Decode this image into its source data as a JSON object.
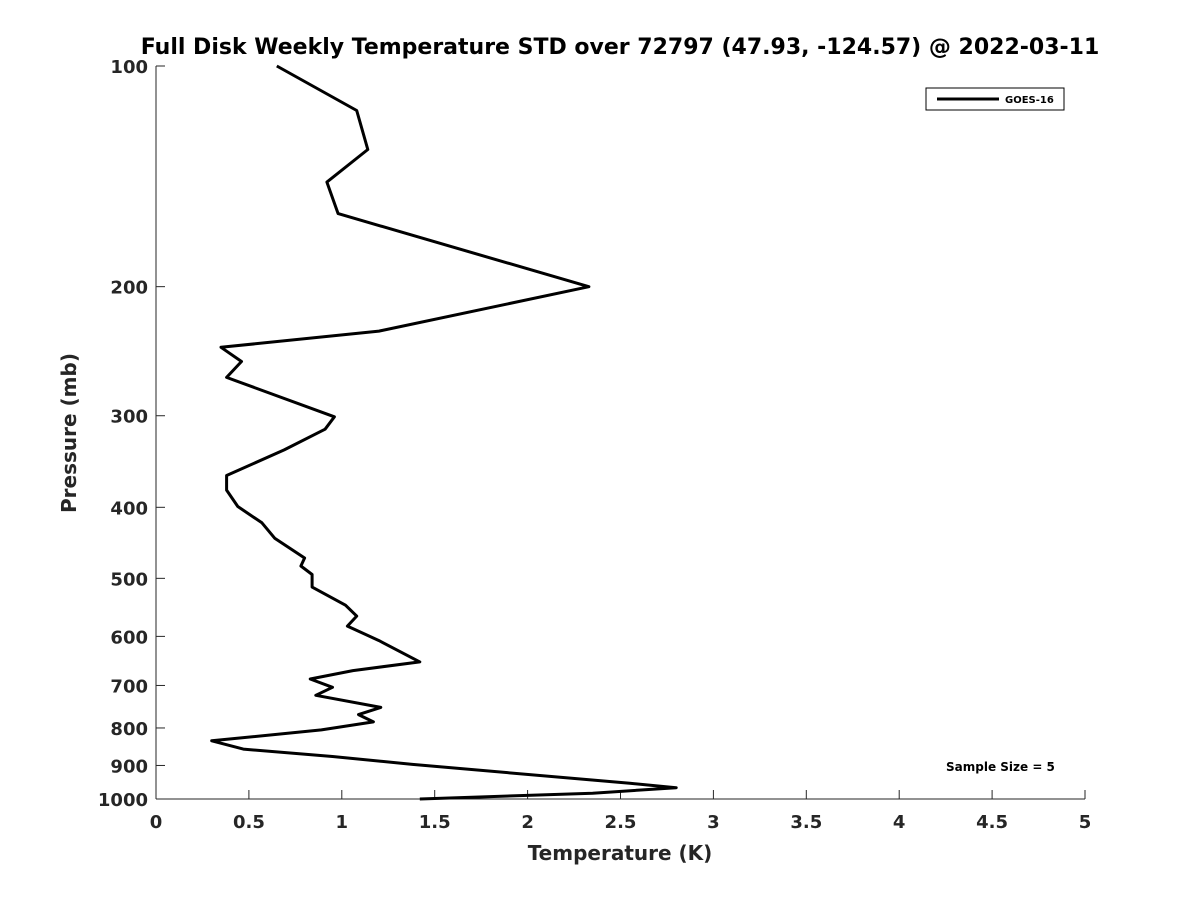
{
  "chart_data": {
    "type": "line",
    "title": "Full Disk Weekly Temperature STD over 72797 (47.93, -124.57) @ 2022-03-11",
    "xlabel": "Temperature (K)",
    "ylabel": "Pressure (mb)",
    "xlim": [
      0,
      5
    ],
    "ylim": [
      100,
      1000
    ],
    "y_scale": "log",
    "y_reversed": true,
    "xticks": [
      "0",
      "0.5",
      "1",
      "1.5",
      "2",
      "2.5",
      "3",
      "3.5",
      "4",
      "4.5",
      "5"
    ],
    "yticks": [
      "100",
      "200",
      "300",
      "400",
      "500",
      "600",
      "700",
      "800",
      "900",
      "1000"
    ],
    "grid": false,
    "legend_position": "top-right",
    "annotation": "Sample Size = 5",
    "series": [
      {
        "name": "GOES-16",
        "color": "#000000",
        "x": [
          0.65,
          1.08,
          1.14,
          0.92,
          0.98,
          2.33,
          1.2,
          0.35,
          0.46,
          0.38,
          0.96,
          0.91,
          0.69,
          0.38,
          0.38,
          0.44,
          0.57,
          0.64,
          0.8,
          0.78,
          0.84,
          0.84,
          1.02,
          1.08,
          1.03,
          1.2,
          1.42,
          1.06,
          0.83,
          0.95,
          0.86,
          1.21,
          1.09,
          1.17,
          0.89,
          0.3,
          0.47,
          0.95,
          1.38,
          2.55,
          2.8,
          2.35,
          1.42
        ],
        "y": [
          100,
          115,
          130,
          144,
          159,
          200,
          230,
          242,
          253,
          266,
          301,
          313,
          334,
          362,
          379,
          399,
          420,
          441,
          469,
          481,
          494,
          514,
          544,
          563,
          581,
          608,
          650,
          668,
          686,
          704,
          722,
          750,
          767,
          785,
          805,
          833,
          855,
          875,
          897,
          952,
          965,
          982,
          1000
        ]
      }
    ]
  }
}
